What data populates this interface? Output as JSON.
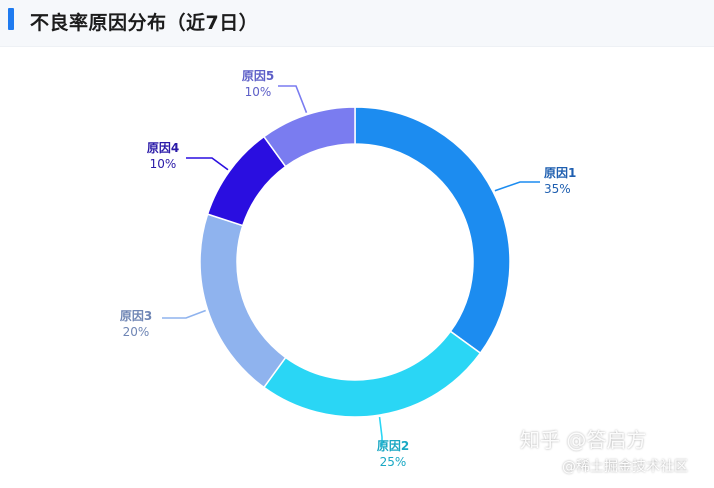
{
  "header": {
    "title": "不良率原因分布（近7日）",
    "accent_color": "#1f7bf0"
  },
  "chart_data": {
    "type": "pie",
    "variant": "donut",
    "title": "不良率原因分布（近7日）",
    "slices": [
      {
        "label": "原因1",
        "value": 35,
        "value_label": "35%",
        "color": "#1c8cf0",
        "label_color": "#1f5fb0"
      },
      {
        "label": "原因2",
        "value": 25,
        "value_label": "25%",
        "color": "#2ad6f5",
        "label_color": "#1aa8c4"
      },
      {
        "label": "原因3",
        "value": 20,
        "value_label": "20%",
        "color": "#8fb3ee",
        "label_color": "#6f86b5"
      },
      {
        "label": "原因4",
        "value": 10,
        "value_label": "10%",
        "color": "#2a0ee0",
        "label_color": "#2a1aa8"
      },
      {
        "label": "原因5",
        "value": 10,
        "value_label": "10%",
        "color": "#7a7cf0",
        "label_color": "#5e60c8"
      }
    ],
    "start_angle_deg": 0,
    "direction": "clockwise",
    "legend": "none"
  },
  "watermark": {
    "main": "知乎 @答启方",
    "sub": "@稀土掘金技术社区"
  }
}
